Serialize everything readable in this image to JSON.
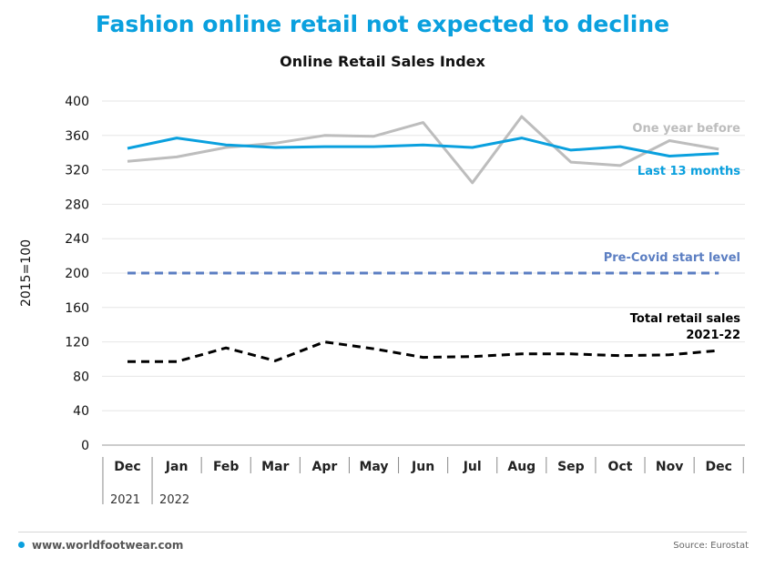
{
  "headline": "Fashion online retail not expected to decline",
  "chart_data": {
    "type": "line",
    "title": "Online Retail Sales Index",
    "xlabel": "",
    "ylabel": "2015=100",
    "ylim": [
      0,
      400
    ],
    "yticks": [
      "0",
      "40",
      "80",
      "120",
      "160",
      "200",
      "240",
      "280",
      "320",
      "360",
      "400"
    ],
    "categories": [
      "Dec",
      "Jan",
      "Feb",
      "Mar",
      "Apr",
      "May",
      "Jun",
      "Jul",
      "Aug",
      "Sep",
      "Oct",
      "Nov",
      "Dec"
    ],
    "years": [
      {
        "label": "2021",
        "start": "Dec"
      },
      {
        "label": "2022",
        "start": "Jan"
      }
    ],
    "grid": true,
    "legend": "inline labels at right",
    "series": [
      {
        "name": "One year before",
        "color": "#bdbdbd",
        "dash": "solid",
        "values": [
          330,
          335,
          346,
          351,
          360,
          359,
          375,
          305,
          382,
          329,
          325,
          354,
          344
        ]
      },
      {
        "name": "Last 13 months",
        "color": "#0aa0de",
        "dash": "solid",
        "values": [
          345,
          357,
          349,
          346,
          347,
          347,
          349,
          346,
          357,
          343,
          347,
          336,
          339
        ]
      },
      {
        "name": "Pre-Covid start level",
        "color": "#5b7ec2",
        "dash": "dashed",
        "values": [
          200,
          200,
          200,
          200,
          200,
          200,
          200,
          200,
          200,
          200,
          200,
          200,
          200
        ]
      },
      {
        "name": "Total retail sales 2021-22",
        "label_lines": [
          "Total retail sales",
          "2021-22"
        ],
        "color": "#000000",
        "dash": "dashed",
        "values": [
          97,
          97,
          113,
          98,
          120,
          112,
          102,
          103,
          106,
          106,
          104,
          105,
          110
        ]
      }
    ]
  },
  "footer": {
    "website": "www.worldfootwear.com",
    "source": "Source: Eurostat"
  }
}
